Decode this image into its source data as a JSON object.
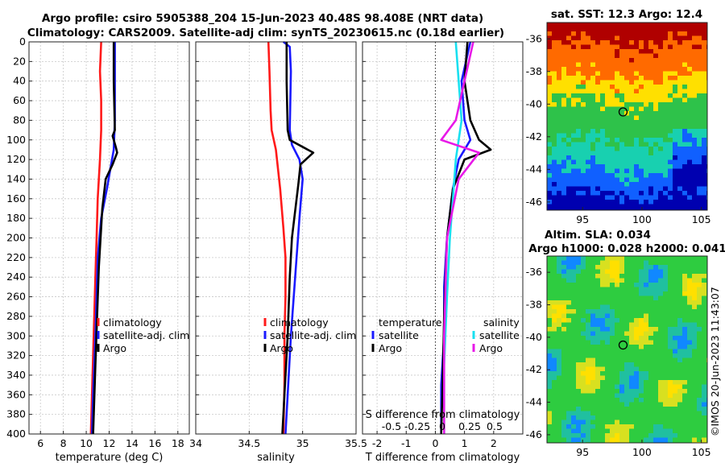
{
  "header": {
    "line1": "Argo profile: csiro 5905388_204 15-Jun-2023 40.48S 98.408E (NRT data)",
    "line2": "Climatology: CARS2009. Satellite-adj clim: synTS_20230615.nc (0.18d earlier)"
  },
  "watermark": "©IMOS 20-Jun-2023 11:43:07",
  "chart_data": [
    {
      "type": "line",
      "title": "",
      "xlabel": "temperature (deg C)",
      "ylabel": "",
      "xlim": [
        5,
        19
      ],
      "ylim": [
        400,
        0
      ],
      "xticks": [
        6,
        8,
        10,
        12,
        14,
        16,
        18
      ],
      "xtick_labels": [
        "6",
        "8",
        "10",
        "12",
        "14",
        "16",
        "18"
      ],
      "yticks": [
        0,
        20,
        40,
        60,
        80,
        100,
        120,
        140,
        160,
        180,
        200,
        220,
        240,
        260,
        280,
        300,
        320,
        340,
        360,
        380,
        400
      ],
      "ytick_labels": [
        "0",
        "20",
        "40",
        "60",
        "80",
        "100",
        "120",
        "140",
        "160",
        "180",
        "200",
        "220",
        "240",
        "260",
        "280",
        "300",
        "320",
        "340",
        "360",
        "380",
        "400"
      ],
      "grid": true,
      "legend": {
        "position": "lower-center",
        "entries": [
          "climatology",
          "satellite-adj. clim",
          "Argo"
        ]
      },
      "series": [
        {
          "name": "climatology",
          "color": "#ff1a1a",
          "x": [
            11.3,
            11.2,
            11.3,
            11.3,
            11.2,
            11.0,
            10.9,
            10.8,
            10.7,
            10.6,
            10.5,
            10.4
          ],
          "y": [
            0,
            30,
            60,
            90,
            120,
            160,
            200,
            240,
            280,
            320,
            360,
            400
          ]
        },
        {
          "name": "satellite-adj. clim",
          "color": "#1a1aff",
          "x": [
            12.5,
            12.5,
            12.5,
            12.4,
            12.1,
            11.8,
            11.3,
            11.0,
            10.9,
            10.8,
            10.6,
            10.5
          ],
          "y": [
            0,
            40,
            80,
            110,
            130,
            150,
            180,
            220,
            260,
            300,
            360,
            400
          ]
        },
        {
          "name": "Argo",
          "color": "#000000",
          "x": [
            12.4,
            12.4,
            12.5,
            12.3,
            12.6,
            12.7,
            12.3,
            11.7,
            11.4,
            11.1,
            10.8,
            10.6
          ],
          "y": [
            0,
            40,
            90,
            96,
            108,
            113,
            125,
            140,
            170,
            230,
            330,
            400
          ]
        }
      ]
    },
    {
      "type": "line",
      "title": "",
      "xlabel": "salinity",
      "ylabel": "",
      "xlim": [
        34,
        35.5
      ],
      "ylim": [
        400,
        0
      ],
      "xticks": [
        34,
        34.5,
        35,
        35.5
      ],
      "xtick_labels": [
        "34",
        "34.5",
        "35",
        "35.5"
      ],
      "grid": true,
      "legend": {
        "position": "lower-center",
        "entries": [
          "climatology",
          "satellite-adj. clim",
          "Argo"
        ]
      },
      "series": [
        {
          "name": "climatology",
          "color": "#ff1a1a",
          "x": [
            34.68,
            34.69,
            34.7,
            34.71,
            34.75,
            34.79,
            34.82,
            34.84,
            34.84,
            34.83,
            34.83,
            34.82
          ],
          "y": [
            0,
            30,
            70,
            90,
            110,
            150,
            190,
            220,
            260,
            300,
            350,
            400
          ]
        },
        {
          "name": "satellite-adj. clim",
          "color": "#1a1aff",
          "x": [
            34.82,
            34.88,
            34.89,
            34.88,
            34.9,
            34.97,
            35.0,
            34.97,
            34.93,
            34.89,
            34.86,
            34.84
          ],
          "y": [
            0,
            5,
            30,
            90,
            105,
            120,
            140,
            180,
            240,
            300,
            360,
            400
          ]
        },
        {
          "name": "Argo",
          "color": "#000000",
          "x": [
            34.85,
            34.85,
            34.86,
            34.88,
            35.1,
            34.98,
            34.96,
            34.9,
            34.88,
            34.86,
            34.83,
            34.81
          ],
          "y": [
            0,
            40,
            90,
            100,
            113,
            125,
            145,
            200,
            240,
            300,
            360,
            400
          ]
        }
      ]
    },
    {
      "type": "line",
      "title": "",
      "xlabel": "T difference from climatology",
      "ylabel": "",
      "xlim": [
        -2.5,
        3
      ],
      "ylim": [
        400,
        0
      ],
      "xticks": [
        -2,
        -1,
        0,
        1,
        2
      ],
      "xtick_labels": [
        "-2",
        "-1",
        "0",
        "1",
        "2"
      ],
      "secondary_axis_label": "S difference from climatology",
      "secondary_ticks": [
        "-0.5",
        "-0.25",
        "0",
        "0.25",
        "0.5"
      ],
      "grid": true,
      "legend": {
        "position": "lower-center",
        "groups": [
          {
            "title": "temperature",
            "entries": [
              "satellite",
              "Argo"
            ]
          },
          {
            "title": "salinity",
            "entries": [
              "satellite",
              "Argo"
            ]
          }
        ]
      },
      "series": [
        {
          "name": "temperature satellite",
          "color": "#1a1aff",
          "x": [
            1.2,
            0.9,
            1.0,
            1.2,
            0.8,
            0.6,
            0.4,
            0.3,
            0.3,
            0.2,
            0.2
          ],
          "y": [
            0,
            40,
            80,
            100,
            120,
            150,
            200,
            250,
            300,
            350,
            400
          ]
        },
        {
          "name": "temperature Argo",
          "color": "#000000",
          "x": [
            1.1,
            1.0,
            1.2,
            1.5,
            1.9,
            1.0,
            0.6,
            0.4,
            0.3,
            0.25,
            0.2
          ],
          "y": [
            0,
            40,
            80,
            100,
            110,
            120,
            150,
            200,
            280,
            350,
            400
          ]
        },
        {
          "name": "salinity satellite",
          "color": "#18e0f0",
          "x": [
            0.7,
            0.8,
            0.9,
            0.7,
            0.6,
            0.5,
            0.4,
            0.3,
            0.3
          ],
          "y": [
            0,
            40,
            80,
            120,
            160,
            200,
            260,
            330,
            400
          ]
        },
        {
          "name": "salinity Argo",
          "color": "#e818e8",
          "x": [
            1.3,
            1.0,
            0.7,
            0.2,
            1.5,
            0.8,
            0.4,
            0.3,
            0.3
          ],
          "y": [
            0,
            40,
            80,
            100,
            113,
            140,
            200,
            300,
            400
          ]
        }
      ]
    }
  ],
  "maps": [
    {
      "title": "sat. SST: 12.3 Argo: 12.4",
      "xticks": [
        "95",
        "100",
        "105"
      ],
      "yticks": [
        "-36",
        "-38",
        "-40",
        "-42",
        "-44",
        "-46"
      ],
      "marker": {
        "lon": 98.408,
        "lat": -40.48
      },
      "colors": [
        "#b00000",
        "#ff6a00",
        "#ffe000",
        "#2ec24a",
        "#18d0b0",
        "#1060ff",
        "#0000b0"
      ]
    },
    {
      "title_line1": "Altim. SLA: 0.034",
      "title_line2": "Argo h1000: 0.028 h2000: 0.041",
      "xticks": [
        "95",
        "100",
        "105"
      ],
      "yticks": [
        "-36",
        "-38",
        "-40",
        "-42",
        "-44",
        "-46"
      ],
      "marker": {
        "lon": 98.408,
        "lat": -40.48
      },
      "colors": [
        "#2ecc40",
        "#20c0a0",
        "#1088ff",
        "#d8e020",
        "#ffe000"
      ]
    }
  ]
}
